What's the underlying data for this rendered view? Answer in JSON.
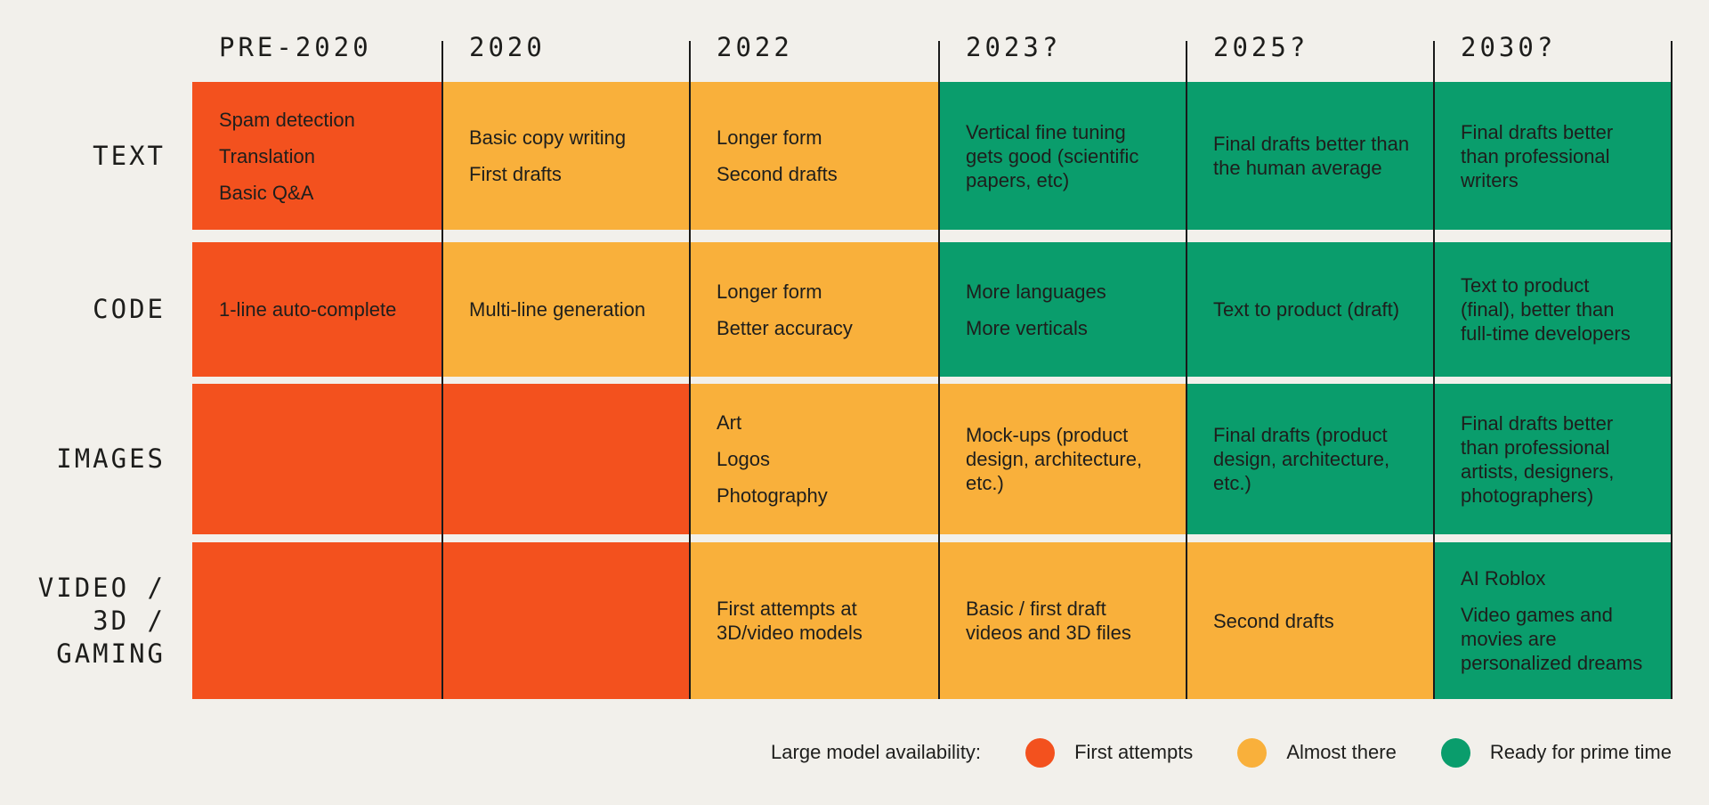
{
  "colors": {
    "background": "#F2F0EB",
    "separator_line": "#1A1A1A",
    "text": "#1E1E1C",
    "first_attempts": "#F3511E",
    "almost_there": "#F9B03B",
    "ready": "#0A9D6C"
  },
  "chart_data": {
    "type": "table",
    "columns": [
      "PRE-2020",
      "2020",
      "2022",
      "2023?",
      "2025?",
      "2030?"
    ],
    "row_labels": [
      "TEXT",
      "CODE",
      "IMAGES",
      "VIDEO / 3D / GAMING"
    ],
    "legend": {
      "label": "Large model availability:",
      "items": [
        {
          "key": "first_attempts",
          "label": "First attempts",
          "color": "#F3511E"
        },
        {
          "key": "almost_there",
          "label": "Almost there",
          "color": "#F9B03B"
        },
        {
          "key": "ready",
          "label": "Ready for prime time",
          "color": "#0A9D6C"
        }
      ]
    },
    "rows": [
      {
        "label_lines": [
          "TEXT"
        ],
        "cells": [
          {
            "status": "first_attempts",
            "lines": [
              "Spam detection",
              "Translation",
              "Basic Q&A"
            ]
          },
          {
            "status": "almost_there",
            "lines": [
              "Basic copy writing",
              "First drafts"
            ]
          },
          {
            "status": "almost_there",
            "lines": [
              "Longer form",
              "Second drafts"
            ]
          },
          {
            "status": "ready",
            "lines": [
              "Vertical fine tuning gets good (scientific papers, etc)"
            ]
          },
          {
            "status": "ready",
            "lines": [
              "Final drafts better than the human average"
            ]
          },
          {
            "status": "ready",
            "lines": [
              "Final drafts better than professional writers"
            ]
          }
        ]
      },
      {
        "label_lines": [
          "CODE"
        ],
        "cells": [
          {
            "status": "first_attempts",
            "lines": [
              "1-line auto-complete"
            ]
          },
          {
            "status": "almost_there",
            "lines": [
              "Multi-line generation"
            ]
          },
          {
            "status": "almost_there",
            "lines": [
              "Longer form",
              "Better accuracy"
            ]
          },
          {
            "status": "ready",
            "lines": [
              "More languages",
              "More verticals"
            ]
          },
          {
            "status": "ready",
            "lines": [
              "Text to product (draft)"
            ]
          },
          {
            "status": "ready",
            "lines": [
              "Text to product (final), better than full-time developers"
            ]
          }
        ]
      },
      {
        "label_lines": [
          "IMAGES"
        ],
        "cells": [
          {
            "status": "first_attempts",
            "lines": []
          },
          {
            "status": "first_attempts",
            "lines": []
          },
          {
            "status": "almost_there",
            "lines": [
              "Art",
              "Logos",
              "Photography"
            ]
          },
          {
            "status": "almost_there",
            "lines": [
              "Mock-ups (product design, architecture, etc.)"
            ]
          },
          {
            "status": "ready",
            "lines": [
              "Final drafts (product design, architecture, etc.)"
            ]
          },
          {
            "status": "ready",
            "lines": [
              "Final drafts better than professional artists, designers, photographers)"
            ]
          }
        ]
      },
      {
        "label_lines": [
          "VIDEO /",
          "3D /",
          "GAMING"
        ],
        "cells": [
          {
            "status": "first_attempts",
            "lines": []
          },
          {
            "status": "first_attempts",
            "lines": []
          },
          {
            "status": "almost_there",
            "lines": [
              "First attempts at 3D/video models"
            ]
          },
          {
            "status": "almost_there",
            "lines": [
              "Basic / first draft videos and 3D files"
            ]
          },
          {
            "status": "almost_there",
            "lines": [
              "Second drafts"
            ]
          },
          {
            "status": "ready",
            "lines": [
              "AI Roblox",
              "Video games and movies are personalized dreams"
            ]
          }
        ]
      }
    ]
  }
}
